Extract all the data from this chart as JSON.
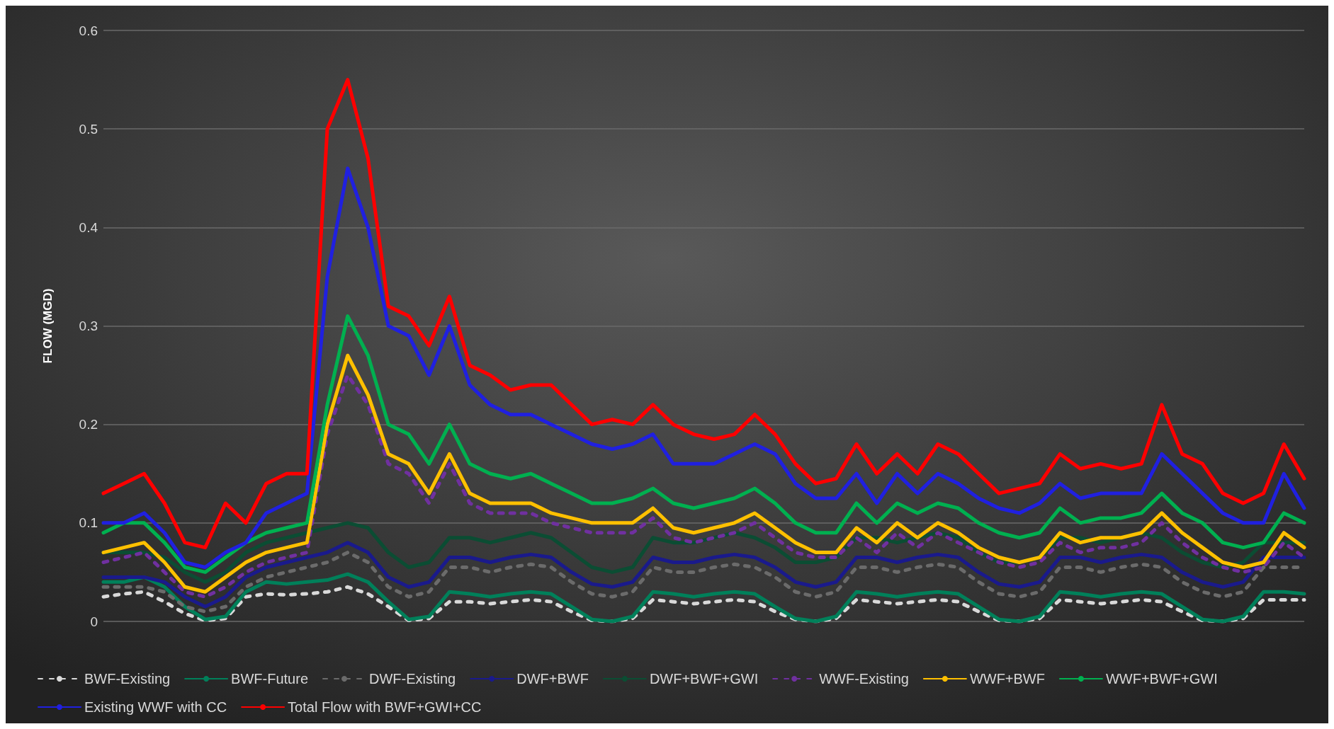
{
  "chart_data": {
    "type": "line",
    "ylabel": "FLOW (MGD)",
    "ylim": [
      0,
      0.6
    ],
    "yticks": [
      0,
      0.1,
      0.2,
      0.3,
      0.4,
      0.5,
      0.6
    ],
    "grid": "y",
    "legend": "bottom",
    "tick_labels": "y",
    "marker": "none",
    "categories": [
      null,
      null,
      null,
      null,
      null,
      null,
      null,
      null,
      null,
      null,
      null,
      null,
      null,
      null,
      null,
      null,
      null,
      null,
      null,
      null,
      null,
      null,
      null,
      null,
      null,
      null,
      null,
      null,
      null,
      null,
      null,
      null,
      null,
      null,
      null,
      null,
      null,
      null,
      null,
      null,
      null,
      null,
      null,
      null,
      null,
      null,
      null,
      null,
      null,
      null,
      null,
      null,
      null,
      null,
      null,
      null,
      null,
      null,
      null,
      null
    ],
    "series": [
      {
        "name": "BWF-Existing",
        "color": "#d9d9d9",
        "line_style": "dashed",
        "values": [
          0.025,
          0.028,
          0.03,
          0.02,
          0.008,
          0.001,
          0.003,
          0.025,
          0.028,
          0.027,
          0.028,
          0.03,
          0.035,
          0.028,
          0.015,
          0.001,
          0.003,
          0.02,
          0.02,
          0.018,
          0.02,
          0.022,
          0.02,
          0.01,
          0.001,
          0,
          0.003,
          0.022,
          0.02,
          0.018,
          0.02,
          0.022,
          0.02,
          0.01,
          0.002,
          0,
          0.003,
          0.022,
          0.02,
          0.018,
          0.02,
          0.022,
          0.02,
          0.01,
          0.001,
          0,
          0.003,
          0.022,
          0.02,
          0.018,
          0.02,
          0.022,
          0.02,
          0.01,
          0.001,
          0,
          0.003,
          0.022,
          0.022,
          0.022
        ]
      },
      {
        "name": "BWF-Future",
        "color": "#00805a",
        "line_style": "solid",
        "values": [
          0.04,
          0.04,
          0.045,
          0.035,
          0.015,
          0.002,
          0.005,
          0.03,
          0.04,
          0.038,
          0.04,
          0.042,
          0.048,
          0.04,
          0.02,
          0.002,
          0.005,
          0.03,
          0.028,
          0.025,
          0.028,
          0.03,
          0.028,
          0.015,
          0.002,
          0,
          0.005,
          0.03,
          0.028,
          0.025,
          0.028,
          0.03,
          0.028,
          0.015,
          0.003,
          0,
          0.005,
          0.03,
          0.028,
          0.025,
          0.028,
          0.03,
          0.028,
          0.015,
          0.002,
          0,
          0.005,
          0.03,
          0.028,
          0.025,
          0.028,
          0.03,
          0.028,
          0.015,
          0.002,
          0,
          0.005,
          0.03,
          0.03,
          0.028
        ]
      },
      {
        "name": "DWF-Existing",
        "color": "#6b6b6b",
        "line_style": "dashed",
        "values": [
          0.035,
          0.035,
          0.035,
          0.03,
          0.015,
          0.01,
          0.015,
          0.035,
          0.045,
          0.05,
          0.055,
          0.06,
          0.07,
          0.06,
          0.035,
          0.025,
          0.03,
          0.055,
          0.055,
          0.05,
          0.055,
          0.058,
          0.055,
          0.04,
          0.028,
          0.025,
          0.03,
          0.055,
          0.05,
          0.05,
          0.055,
          0.058,
          0.055,
          0.045,
          0.03,
          0.025,
          0.03,
          0.055,
          0.055,
          0.05,
          0.055,
          0.058,
          0.055,
          0.04,
          0.028,
          0.025,
          0.03,
          0.055,
          0.055,
          0.05,
          0.055,
          0.058,
          0.055,
          0.04,
          0.03,
          0.025,
          0.03,
          0.055,
          0.055,
          0.055
        ]
      },
      {
        "name": "DWF+BWF",
        "color": "#1a1a8c",
        "line_style": "solid",
        "values": [
          0.045,
          0.045,
          0.045,
          0.04,
          0.025,
          0.015,
          0.025,
          0.045,
          0.055,
          0.06,
          0.065,
          0.07,
          0.08,
          0.07,
          0.045,
          0.035,
          0.04,
          0.065,
          0.065,
          0.06,
          0.065,
          0.068,
          0.065,
          0.05,
          0.038,
          0.035,
          0.04,
          0.065,
          0.06,
          0.06,
          0.065,
          0.068,
          0.065,
          0.055,
          0.04,
          0.035,
          0.04,
          0.065,
          0.065,
          0.06,
          0.065,
          0.068,
          0.065,
          0.05,
          0.038,
          0.035,
          0.04,
          0.065,
          0.065,
          0.06,
          0.065,
          0.068,
          0.065,
          0.05,
          0.04,
          0.035,
          0.04,
          0.065,
          0.065,
          0.065
        ]
      },
      {
        "name": "DWF+BWF+GWI",
        "color": "#0b4d33",
        "line_style": "solid",
        "values": [
          0.07,
          0.07,
          0.07,
          0.065,
          0.05,
          0.04,
          0.05,
          0.07,
          0.08,
          0.085,
          0.09,
          0.095,
          0.1,
          0.095,
          0.07,
          0.055,
          0.06,
          0.085,
          0.085,
          0.08,
          0.085,
          0.09,
          0.085,
          0.07,
          0.055,
          0.05,
          0.055,
          0.085,
          0.08,
          0.08,
          0.085,
          0.09,
          0.085,
          0.075,
          0.06,
          0.06,
          0.065,
          0.085,
          0.085,
          0.08,
          0.085,
          0.09,
          0.085,
          0.07,
          0.06,
          0.06,
          0.065,
          0.085,
          0.085,
          0.08,
          0.085,
          0.09,
          0.085,
          0.07,
          0.06,
          0.055,
          0.06,
          0.08,
          0.08,
          0.08
        ]
      },
      {
        "name": "WWF-Existing",
        "color": "#7030a0",
        "line_style": "dashed",
        "values": [
          0.06,
          0.065,
          0.07,
          0.05,
          0.03,
          0.025,
          0.035,
          0.05,
          0.06,
          0.065,
          0.07,
          0.19,
          0.25,
          0.22,
          0.16,
          0.15,
          0.12,
          0.16,
          0.12,
          0.11,
          0.11,
          0.11,
          0.1,
          0.095,
          0.09,
          0.09,
          0.09,
          0.105,
          0.085,
          0.08,
          0.085,
          0.09,
          0.1,
          0.085,
          0.07,
          0.065,
          0.065,
          0.085,
          0.07,
          0.09,
          0.075,
          0.09,
          0.08,
          0.07,
          0.06,
          0.055,
          0.06,
          0.08,
          0.07,
          0.075,
          0.075,
          0.08,
          0.1,
          0.08,
          0.065,
          0.055,
          0.05,
          0.055,
          0.08,
          0.065
        ]
      },
      {
        "name": "WWF+BWF",
        "color": "#ffc000",
        "line_style": "solid",
        "values": [
          0.07,
          0.075,
          0.08,
          0.06,
          0.035,
          0.03,
          0.045,
          0.06,
          0.07,
          0.075,
          0.08,
          0.2,
          0.27,
          0.23,
          0.17,
          0.16,
          0.13,
          0.17,
          0.13,
          0.12,
          0.12,
          0.12,
          0.11,
          0.105,
          0.1,
          0.1,
          0.1,
          0.115,
          0.095,
          0.09,
          0.095,
          0.1,
          0.11,
          0.095,
          0.08,
          0.07,
          0.07,
          0.095,
          0.08,
          0.1,
          0.085,
          0.1,
          0.09,
          0.075,
          0.065,
          0.06,
          0.065,
          0.09,
          0.08,
          0.085,
          0.085,
          0.09,
          0.11,
          0.09,
          0.075,
          0.06,
          0.055,
          0.06,
          0.09,
          0.075
        ]
      },
      {
        "name": "WWF+BWF+GWI",
        "color": "#00b050",
        "line_style": "solid",
        "values": [
          0.09,
          0.1,
          0.1,
          0.08,
          0.055,
          0.05,
          0.065,
          0.08,
          0.09,
          0.095,
          0.1,
          0.22,
          0.31,
          0.27,
          0.2,
          0.19,
          0.16,
          0.2,
          0.16,
          0.15,
          0.145,
          0.15,
          0.14,
          0.13,
          0.12,
          0.12,
          0.125,
          0.135,
          0.12,
          0.115,
          0.12,
          0.125,
          0.135,
          0.12,
          0.1,
          0.09,
          0.09,
          0.12,
          0.1,
          0.12,
          0.11,
          0.12,
          0.115,
          0.1,
          0.09,
          0.085,
          0.09,
          0.115,
          0.1,
          0.105,
          0.105,
          0.11,
          0.13,
          0.11,
          0.1,
          0.08,
          0.075,
          0.08,
          0.11,
          0.1
        ]
      },
      {
        "name": "Existing WWF with CC",
        "color": "#2020e0",
        "line_style": "solid",
        "values": [
          0.1,
          0.1,
          0.11,
          0.09,
          0.06,
          0.055,
          0.07,
          0.08,
          0.11,
          0.12,
          0.13,
          0.35,
          0.46,
          0.4,
          0.3,
          0.29,
          0.25,
          0.3,
          0.24,
          0.22,
          0.21,
          0.21,
          0.2,
          0.19,
          0.18,
          0.175,
          0.18,
          0.19,
          0.16,
          0.16,
          0.16,
          0.17,
          0.18,
          0.17,
          0.14,
          0.125,
          0.125,
          0.15,
          0.12,
          0.15,
          0.13,
          0.15,
          0.14,
          0.125,
          0.115,
          0.11,
          0.12,
          0.14,
          0.125,
          0.13,
          0.13,
          0.13,
          0.17,
          0.15,
          0.13,
          0.11,
          0.1,
          0.1,
          0.15,
          0.115
        ]
      },
      {
        "name": "Total Flow with BWF+GWI+CC",
        "color": "#ff0000",
        "line_style": "solid",
        "values": [
          0.13,
          0.14,
          0.15,
          0.12,
          0.08,
          0.075,
          0.12,
          0.1,
          0.14,
          0.15,
          0.15,
          0.5,
          0.55,
          0.47,
          0.32,
          0.31,
          0.28,
          0.33,
          0.26,
          0.25,
          0.235,
          0.24,
          0.24,
          0.22,
          0.2,
          0.205,
          0.2,
          0.22,
          0.2,
          0.19,
          0.185,
          0.19,
          0.21,
          0.19,
          0.16,
          0.14,
          0.145,
          0.18,
          0.15,
          0.17,
          0.15,
          0.18,
          0.17,
          0.15,
          0.13,
          0.135,
          0.14,
          0.17,
          0.155,
          0.16,
          0.155,
          0.16,
          0.22,
          0.17,
          0.16,
          0.13,
          0.12,
          0.13,
          0.18,
          0.145
        ]
      }
    ]
  }
}
